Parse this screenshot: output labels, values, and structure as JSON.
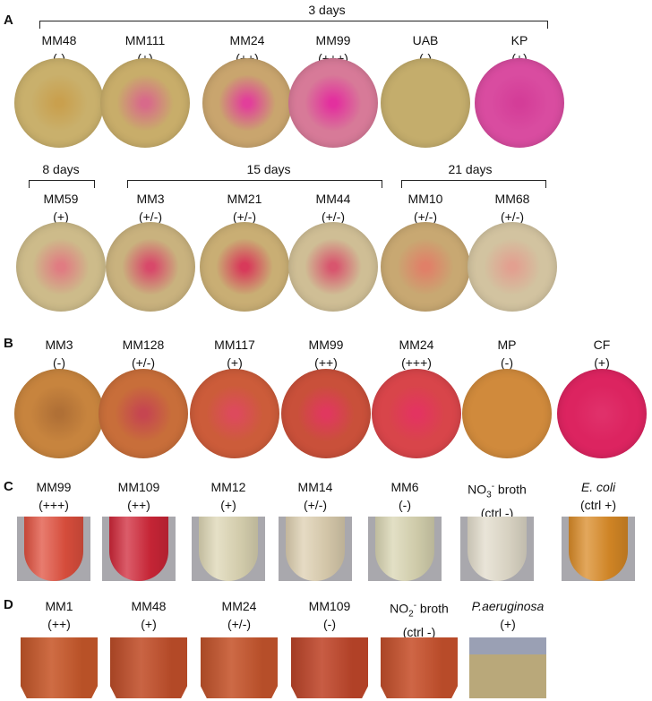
{
  "panels": {
    "A": {
      "letter": "A",
      "groups": [
        {
          "title": "3 days"
        },
        {
          "title": "8 days"
        },
        {
          "title": "15 days"
        },
        {
          "title": "21 days"
        }
      ],
      "row1": [
        {
          "name": "MM48",
          "result": "(-)",
          "color": "#c9b06c",
          "center": "#c9a04e"
        },
        {
          "name": "MM111",
          "result": "(+)",
          "color": "#c8ad6a",
          "center": "#d86a8a"
        },
        {
          "name": "MM24",
          "result": "(++)",
          "color": "#c9a56e",
          "center": "#e23f9a"
        },
        {
          "name": "MM99",
          "result": "(+++)",
          "color": "#d77a98",
          "center": "#e3309e"
        },
        {
          "name": "UAB",
          "result": "(-)",
          "color": "#c4ad6c",
          "center": "#c4ad6c"
        },
        {
          "name": "KP",
          "result": "(+)",
          "color": "#d94ca0",
          "center": "#d43d98"
        }
      ],
      "row2": [
        {
          "name": "MM59",
          "result": "(+)",
          "color": "#cdbb8a",
          "center": "#e07c82"
        },
        {
          "name": "MM3",
          "result": "(+/-)",
          "color": "#c9b27e",
          "center": "#d8496a"
        },
        {
          "name": "MM21",
          "result": "(+/-)",
          "color": "#c9ae74",
          "center": "#d83a5a"
        },
        {
          "name": "MM44",
          "result": "(+/-)",
          "color": "#cfbe95",
          "center": "#d8566e"
        },
        {
          "name": "MM10",
          "result": "(+/-)",
          "color": "#c8a872",
          "center": "#e08068"
        },
        {
          "name": "MM68",
          "result": "(+/-)",
          "color": "#d2c3a0",
          "center": "#e2a090"
        }
      ]
    },
    "B": {
      "letter": "B",
      "items": [
        {
          "name": "MM3",
          "result": "(-)",
          "color": "#c7843e",
          "center": "#b07036"
        },
        {
          "name": "MM128",
          "result": "(+/-)",
          "color": "#c86e3a",
          "center": "#c64650"
        },
        {
          "name": "MM117",
          "result": "(+)",
          "color": "#cc5c3a",
          "center": "#dd4a5c"
        },
        {
          "name": "MM99",
          "result": "(++)",
          "color": "#c9503a",
          "center": "#e0385e"
        },
        {
          "name": "MM24",
          "result": "(+++)",
          "color": "#d8454a",
          "center": "#e33460"
        },
        {
          "name": "MP",
          "result": "(-)",
          "color": "#d08a3c",
          "center": "#d08a3c"
        },
        {
          "name": "CF",
          "result": "(+)",
          "color": "#dc2460",
          "center": "#e0306a"
        }
      ]
    },
    "C": {
      "letter": "C",
      "items": [
        {
          "name": "MM99",
          "result": "(+++)",
          "color": "#e0503e"
        },
        {
          "name": "MM109",
          "result": "(++)",
          "color": "#cf2638"
        },
        {
          "name": "MM12",
          "result": "(+)",
          "color": "#ddd6b4"
        },
        {
          "name": "MM14",
          "result": "(+/-)",
          "color": "#ddcfb0"
        },
        {
          "name": "MM6",
          "result": "(-)",
          "color": "#d9d5b2"
        },
        {
          "name": "NO",
          "sub": "3",
          "sup": "-",
          "name_tail": " broth",
          "result": "(ctrl -)",
          "color": "#e2dccb"
        },
        {
          "name": "E. coli",
          "italic": true,
          "result": "(ctrl +)",
          "color": "#d98a26"
        }
      ]
    },
    "D": {
      "letter": "D",
      "items": [
        {
          "name": "MM1",
          "result": "(++)",
          "color": "#c8582a"
        },
        {
          "name": "MM48",
          "result": "(+)",
          "color": "#c24f2a"
        },
        {
          "name": "MM24",
          "result": "(+/-)",
          "color": "#c6552c"
        },
        {
          "name": "MM109",
          "result": "(-)",
          "color": "#c0462a"
        },
        {
          "name": "NO",
          "sub": "2",
          "sup": "-",
          "name_tail": " broth",
          "result": "(ctrl -)",
          "color": "#c8512c"
        },
        {
          "name": "P.aeruginosa",
          "italic": true,
          "result": "(+)",
          "color": "#b9a87a"
        }
      ]
    }
  }
}
